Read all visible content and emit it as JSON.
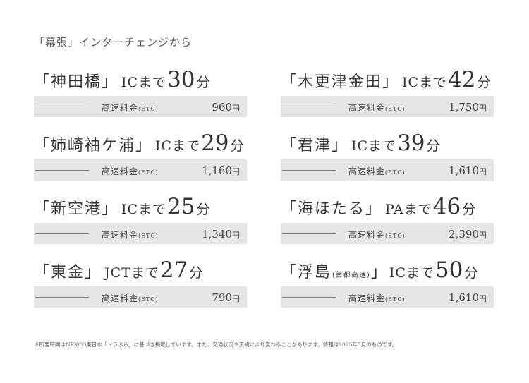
{
  "heading": "「幕張」インターチェンジから",
  "fee_label": "高速料金",
  "fee_label_suffix": "(ETC)",
  "yen_unit": "円",
  "minutes_unit": "分",
  "items": [
    {
      "name": "「神田橋」",
      "name_sub": "",
      "name_end": "",
      "via": "ICまで",
      "minutes": "30",
      "fee": "960"
    },
    {
      "name": "「姉崎袖ケ浦」",
      "name_sub": "",
      "name_end": "",
      "via": "ICまで",
      "minutes": "29",
      "fee": "1,160"
    },
    {
      "name": "「新空港」",
      "name_sub": "",
      "name_end": "",
      "via": "ICまで",
      "minutes": "25",
      "fee": "1,340"
    },
    {
      "name": "「東金」",
      "name_sub": "",
      "name_end": "",
      "via": "JCTまで",
      "minutes": "27",
      "fee": "790"
    },
    {
      "name": "「木更津金田」",
      "name_sub": "",
      "name_end": "",
      "via": "ICまで",
      "minutes": "42",
      "fee": "1,750"
    },
    {
      "name": "「君津」",
      "name_sub": "",
      "name_end": "",
      "via": "ICまで",
      "minutes": "39",
      "fee": "1,610"
    },
    {
      "name": "「海ほたる」",
      "name_sub": "",
      "name_end": "",
      "via": "PAまで",
      "minutes": "46",
      "fee": "2,390"
    },
    {
      "name": "「浮島",
      "name_sub": "(首都高速)",
      "name_end": "」",
      "via": "ICまで",
      "minutes": "50",
      "fee": "1,610"
    }
  ],
  "footnote": "※所要時間はNEXCO東日本「ドラぷら」に基づき掲載しています。また、交通状況や天候により変わることがあります。情報は2025年5月のものです。"
}
